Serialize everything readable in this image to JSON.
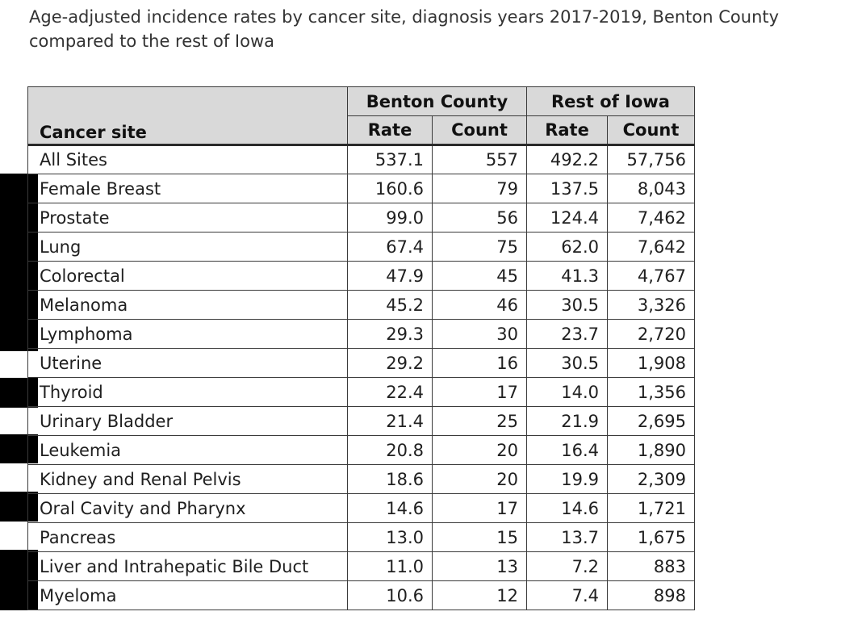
{
  "title": "Age-adjusted incidence rates by cancer site, diagnosis years 2017-2019, Benton County compared to the rest of Iowa",
  "table": {
    "site_header": "Cancer site",
    "groups": [
      "Benton County",
      "Rest of Iowa"
    ],
    "subheaders": [
      "Rate",
      "Count",
      "Rate",
      "Count"
    ],
    "rows": [
      {
        "site": "All Sites",
        "values": [
          "537.1",
          "557",
          "492.2",
          "57,756"
        ]
      },
      {
        "site": "Female Breast",
        "values": [
          "160.6",
          "79",
          "137.5",
          "8,043"
        ]
      },
      {
        "site": "Prostate",
        "values": [
          "99.0",
          "56",
          "124.4",
          "7,462"
        ]
      },
      {
        "site": "Lung",
        "values": [
          "67.4",
          "75",
          "62.0",
          "7,642"
        ]
      },
      {
        "site": "Colorectal",
        "values": [
          "47.9",
          "45",
          "41.3",
          "4,767"
        ]
      },
      {
        "site": "Melanoma",
        "values": [
          "45.2",
          "46",
          "30.5",
          "3,326"
        ]
      },
      {
        "site": "Lymphoma",
        "values": [
          "29.3",
          "30",
          "23.7",
          "2,720"
        ]
      },
      {
        "site": "Uterine",
        "values": [
          "29.2",
          "16",
          "30.5",
          "1,908"
        ]
      },
      {
        "site": "Thyroid",
        "values": [
          "22.4",
          "17",
          "14.0",
          "1,356"
        ]
      },
      {
        "site": "Urinary Bladder",
        "values": [
          "21.4",
          "25",
          "21.9",
          "2,695"
        ]
      },
      {
        "site": "Leukemia",
        "values": [
          "20.8",
          "20",
          "16.4",
          "1,890"
        ]
      },
      {
        "site": "Kidney and Renal Pelvis",
        "values": [
          "18.6",
          "20",
          "19.9",
          "2,309"
        ]
      },
      {
        "site": "Oral Cavity and Pharynx",
        "values": [
          "14.6",
          "17",
          "14.6",
          "1,721"
        ]
      },
      {
        "site": "Pancreas",
        "values": [
          "13.0",
          "15",
          "13.7",
          "1,675"
        ]
      },
      {
        "site": "Liver and Intrahepatic Bile Duct",
        "values": [
          "11.0",
          "13",
          "7.2",
          "883"
        ]
      },
      {
        "site": "Myeloma",
        "values": [
          "10.6",
          "12",
          "7.4",
          "898"
        ]
      }
    ]
  }
}
